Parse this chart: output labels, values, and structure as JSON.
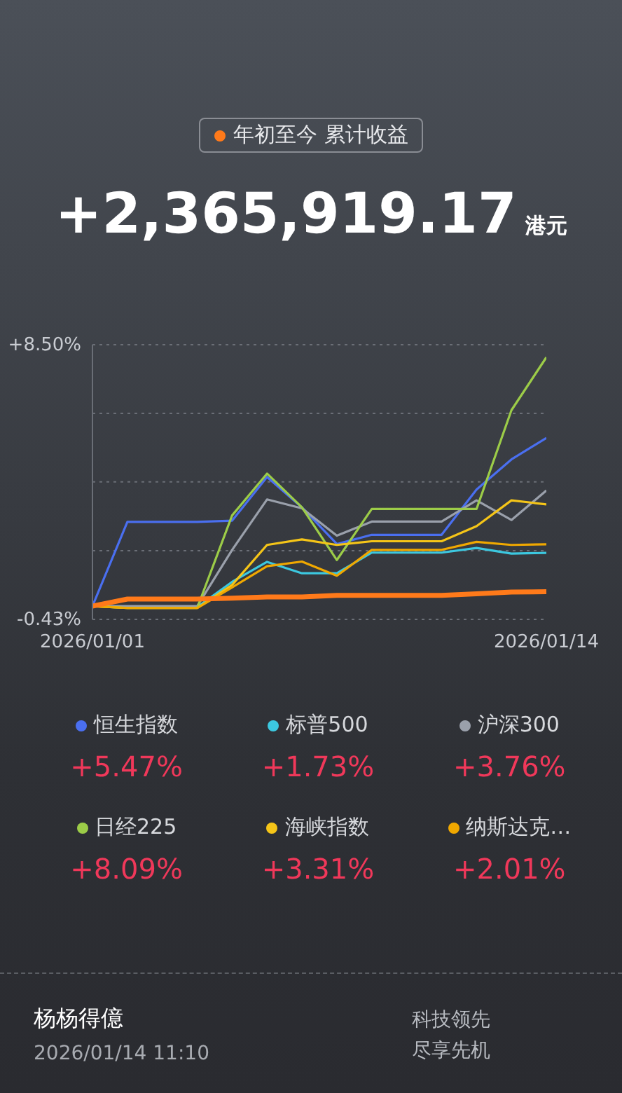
{
  "chart_data": {
    "type": "line",
    "title": "+2,365,919.17",
    "subtitle": "港元",
    "x": [
      "2026-01-01",
      "2026-01-02",
      "2026-01-03",
      "2026-01-04",
      "2026-01-05",
      "2026-01-06",
      "2026-01-07",
      "2026-01-08",
      "2026-01-09",
      "2026-01-10",
      "2026-01-11",
      "2026-01-12",
      "2026-01-13",
      "2026-01-14"
    ],
    "xlim": [
      "2026-01-01",
      "2026-01-14"
    ],
    "xticks": [
      {
        "value": "2026-01-01",
        "label": "2026/01/01"
      },
      {
        "value": "2026-01-14",
        "label": "2026/01/14"
      }
    ],
    "ylim": [
      -0.43,
      8.5
    ],
    "yticks": [
      {
        "value": -0.43,
        "label": "-0.43%"
      },
      {
        "value": 1.8,
        "label": null
      },
      {
        "value": 4.04,
        "label": null
      },
      {
        "value": 6.27,
        "label": null
      },
      {
        "value": 8.5,
        "label": "+8.50%"
      }
    ],
    "grid": "y",
    "legend": "top",
    "marker": "none",
    "line_style": "solid",
    "series": [
      {
        "name": "恒生指数",
        "color": "#4a6ff0",
        "values": [
          0,
          2.74,
          2.74,
          2.74,
          2.78,
          4.2,
          3.21,
          2.02,
          2.32,
          2.32,
          2.32,
          3.79,
          4.77,
          5.47
        ]
      },
      {
        "name": "标普500",
        "color": "#3cc8e0",
        "values": [
          null,
          null,
          null,
          -0.03,
          0.79,
          1.44,
          1.07,
          1.07,
          1.74,
          1.74,
          1.74,
          1.89,
          1.71,
          1.73
        ]
      },
      {
        "name": "沪深300",
        "color": "#9aa0ab",
        "values": [
          0,
          0,
          0,
          0,
          1.83,
          3.47,
          3.18,
          2.29,
          2.75,
          2.75,
          2.75,
          3.44,
          2.8,
          3.76
        ]
      },
      {
        "name": "日经225",
        "color": "#9ccc48",
        "values": [
          0,
          -0.06,
          -0.06,
          -0.06,
          2.95,
          4.31,
          3.21,
          1.5,
          3.16,
          3.16,
          3.16,
          3.16,
          6.37,
          8.09
        ]
      },
      {
        "name": "海峡指数",
        "color": "#f5c518",
        "values": [
          0,
          -0.06,
          -0.06,
          -0.06,
          0.69,
          1.99,
          2.17,
          1.99,
          2.11,
          2.11,
          2.11,
          2.6,
          3.44,
          3.31
        ]
      },
      {
        "name": "纳斯达克…",
        "color": "#f0a800",
        "values": [
          0,
          -0.06,
          -0.06,
          -0.06,
          0.61,
          1.3,
          1.45,
          0.99,
          1.83,
          1.83,
          1.83,
          2.09,
          1.99,
          2.01
        ]
      },
      {
        "name": "年初至今 累计收益",
        "color": "#ff7a1a",
        "values": [
          0,
          0.23,
          0.23,
          0.23,
          0.26,
          0.3,
          0.3,
          0.35,
          0.35,
          0.35,
          0.35,
          0.4,
          0.46,
          0.47
        ]
      }
    ],
    "annotations": [
      "+5.47%",
      "+1.73%",
      "+3.76%",
      "+8.09%",
      "+3.31%",
      "+2.01%",
      "杨杨得億",
      "2026/01/14 11:10",
      "科技领先",
      "尽享先机"
    ]
  }
}
